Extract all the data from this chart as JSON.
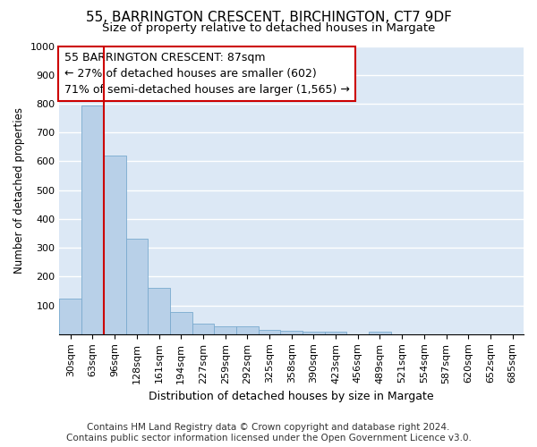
{
  "title_line1": "55, BARRINGTON CRESCENT, BIRCHINGTON, CT7 9DF",
  "title_line2": "Size of property relative to detached houses in Margate",
  "xlabel": "Distribution of detached houses by size in Margate",
  "ylabel": "Number of detached properties",
  "categories": [
    "30sqm",
    "63sqm",
    "96sqm",
    "128sqm",
    "161sqm",
    "194sqm",
    "227sqm",
    "259sqm",
    "292sqm",
    "325sqm",
    "358sqm",
    "390sqm",
    "423sqm",
    "456sqm",
    "489sqm",
    "521sqm",
    "554sqm",
    "587sqm",
    "620sqm",
    "652sqm",
    "685sqm"
  ],
  "values": [
    122,
    795,
    620,
    330,
    160,
    78,
    38,
    28,
    28,
    16,
    12,
    10,
    8,
    0,
    8,
    0,
    0,
    0,
    0,
    0,
    0
  ],
  "bar_color": "#b8d0e8",
  "bar_edge_color": "#7aaace",
  "vline_color": "#cc0000",
  "annotation_text": "55 BARRINGTON CRESCENT: 87sqm\n← 27% of detached houses are smaller (602)\n71% of semi-detached houses are larger (1,565) →",
  "annotation_box_facecolor": "#ffffff",
  "annotation_box_edgecolor": "#cc0000",
  "ylim": [
    0,
    1000
  ],
  "yticks": [
    0,
    100,
    200,
    300,
    400,
    500,
    600,
    700,
    800,
    900,
    1000
  ],
  "plot_bg_color": "#dce8f5",
  "figure_bg_color": "#ffffff",
  "grid_color": "#ffffff",
  "footer_line1": "Contains HM Land Registry data © Crown copyright and database right 2024.",
  "footer_line2": "Contains public sector information licensed under the Open Government Licence v3.0.",
  "title_fontsize": 11,
  "subtitle_fontsize": 9.5,
  "annotation_fontsize": 9,
  "ylabel_fontsize": 8.5,
  "xlabel_fontsize": 9,
  "tick_fontsize": 8,
  "footer_fontsize": 7.5
}
